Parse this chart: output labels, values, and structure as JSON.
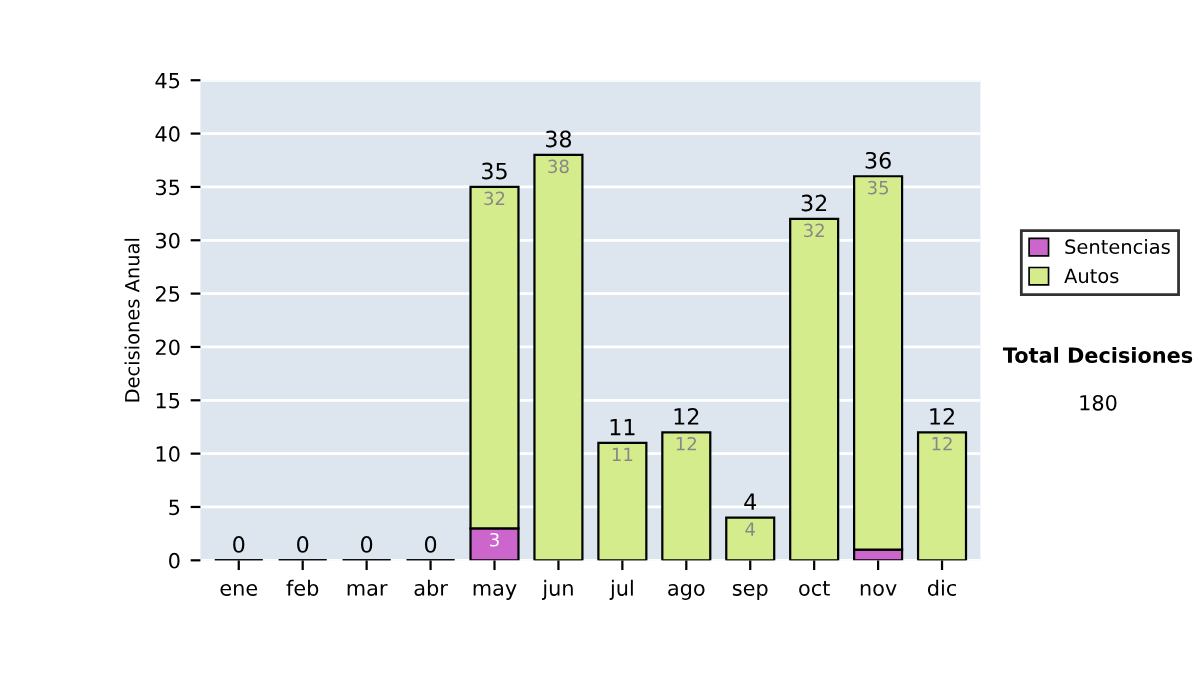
{
  "chart_data": {
    "type": "bar",
    "stacked": true,
    "ylabel": "Decisiones Anual",
    "categories": [
      "ene",
      "feb",
      "mar",
      "abr",
      "may",
      "jun",
      "jul",
      "ago",
      "sep",
      "oct",
      "nov",
      "dic"
    ],
    "series": [
      {
        "name": "Sentencias",
        "color": "#cc66cc",
        "values": [
          0,
          0,
          0,
          0,
          3,
          0,
          0,
          0,
          0,
          0,
          1,
          0
        ],
        "value_labels": [
          null,
          null,
          null,
          null,
          "3",
          null,
          null,
          null,
          null,
          null,
          null,
          null
        ]
      },
      {
        "name": "Autos",
        "color": "#d4ec8c",
        "values": [
          0,
          0,
          0,
          0,
          32,
          38,
          11,
          12,
          4,
          32,
          35,
          12
        ],
        "value_labels": [
          null,
          null,
          null,
          null,
          "32",
          "38",
          "11",
          "12",
          "4",
          "32",
          "35",
          "12"
        ]
      }
    ],
    "totals": [
      "0",
      "0",
      "0",
      "0",
      "35",
      "38",
      "11",
      "12",
      "4",
      "32",
      "36",
      "12"
    ],
    "ylim": [
      0,
      45
    ],
    "yticks": [
      0,
      5,
      10,
      15,
      20,
      25,
      30,
      35,
      40,
      45
    ],
    "grid": "y",
    "legend": "right",
    "annotations": [
      "Total Decisiones",
      "180"
    ]
  }
}
